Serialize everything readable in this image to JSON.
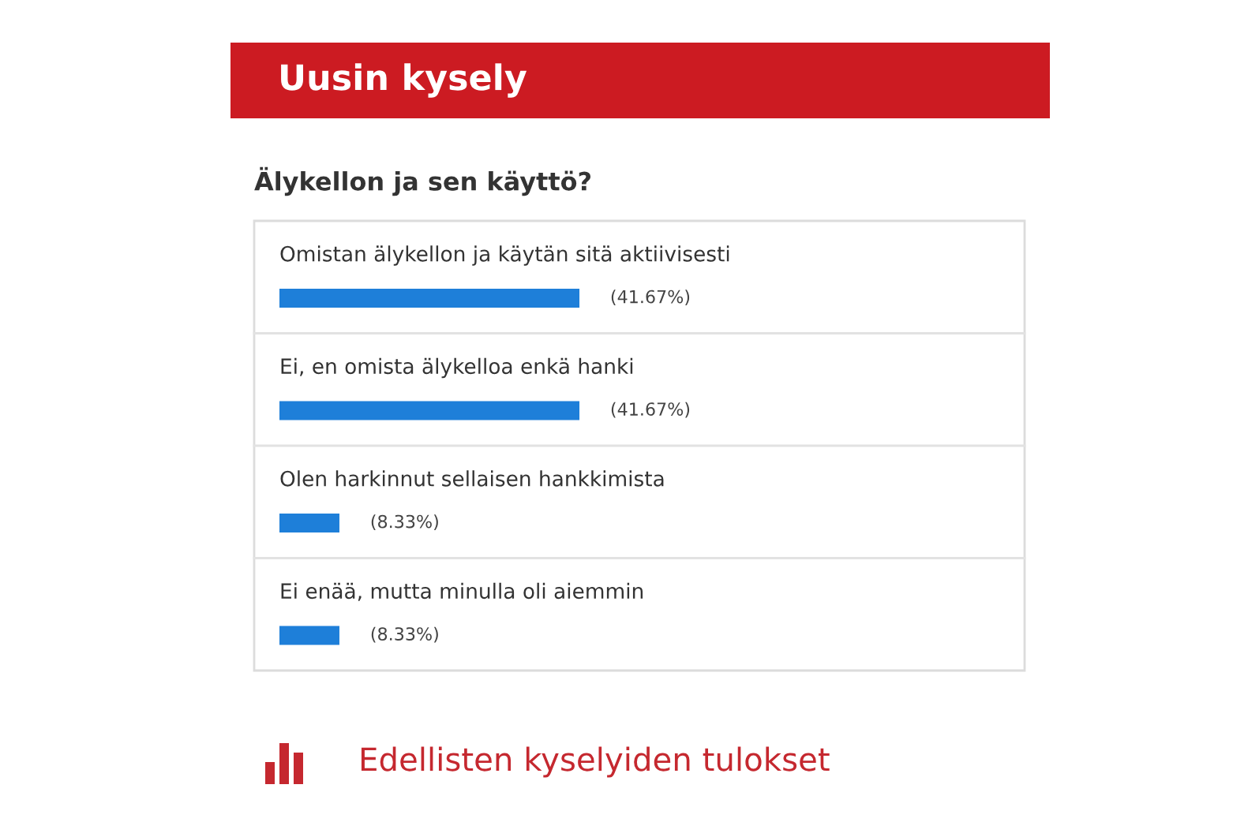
{
  "chart_data": {
    "type": "bar",
    "orientation": "horizontal",
    "title": "Uusin kysely",
    "subtitle": "Älykellon ja sen käyttö?",
    "categories": [
      "Omistan älykellon ja käytän sitä aktiivisesti",
      "Ei, en omista älykelloa enkä hanki",
      "Olen harkinnut sellaisen hankkimista",
      "Ei enää, mutta minulla oli aiemmin"
    ],
    "values": [
      41.67,
      41.67,
      8.33,
      8.33
    ],
    "value_labels": [
      "(41.67%)",
      "(41.67%)",
      "(8.33%)",
      "(8.33%)"
    ],
    "color": "#1e7fd9",
    "tick_labels": "y",
    "annotations": [
      "Edellisten kyselyiden tulokset"
    ]
  }
}
